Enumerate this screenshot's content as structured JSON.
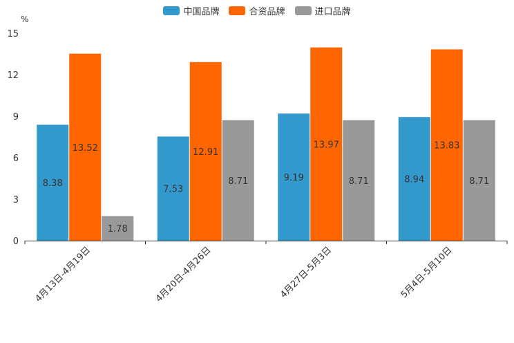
{
  "chart_data": {
    "type": "bar",
    "title": "",
    "ylabel": "%",
    "xlabel": "",
    "ylim": [
      0,
      15
    ],
    "yticks": [
      "0",
      "3",
      "6",
      "9",
      "12",
      "15"
    ],
    "categories": [
      "4月13日-4月19日",
      "4月20日-4月26日",
      "4月27日-5月3日",
      "5月4日-5月10日"
    ],
    "series": [
      {
        "name": "中国品牌",
        "color": "#3399cc",
        "values": [
          8.38,
          7.53,
          9.19,
          8.94
        ]
      },
      {
        "name": "合资品牌",
        "color": "#ff6600",
        "values": [
          13.52,
          12.91,
          13.97,
          13.83
        ]
      },
      {
        "name": "进口品牌",
        "color": "#999999",
        "values": [
          1.78,
          8.71,
          8.71,
          8.71
        ]
      }
    ],
    "legend_position": "top-center"
  }
}
